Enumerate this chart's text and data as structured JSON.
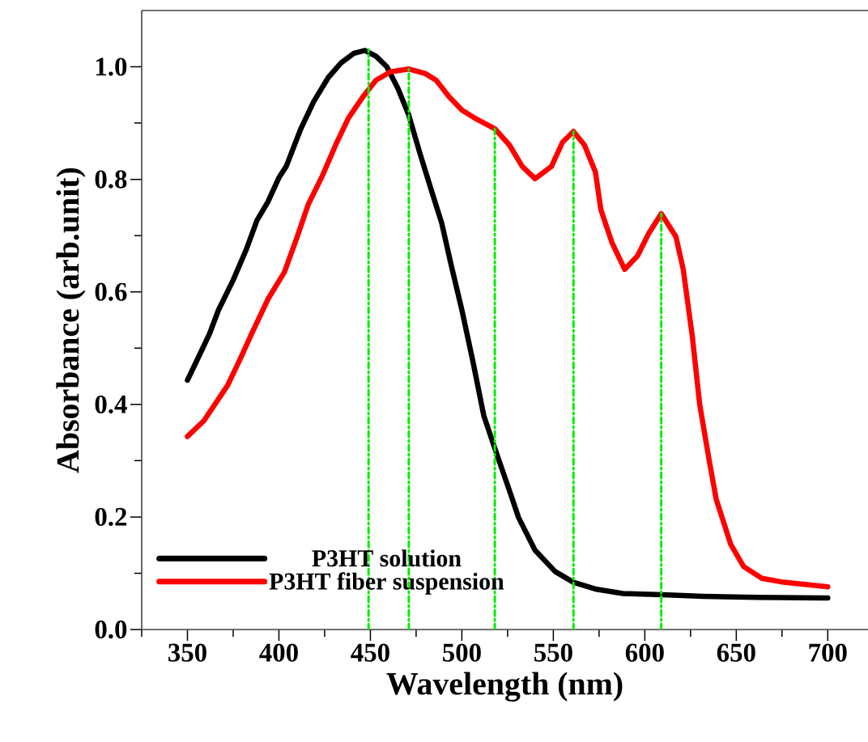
{
  "chart_data": {
    "type": "line",
    "xlabel": "Wavelength (nm)",
    "ylabel": "Absorbance (arb.unit)",
    "xlim": [
      325,
      722
    ],
    "ylim": [
      0,
      1.1
    ],
    "xticks": [
      {
        "value": 325,
        "label": null
      },
      350,
      {
        "value": 375,
        "label": null
      },
      400,
      {
        "value": 425,
        "label": null
      },
      450,
      {
        "value": 475,
        "label": null
      },
      500,
      {
        "value": 525,
        "label": null
      },
      550,
      {
        "value": 575,
        "label": null
      },
      600,
      {
        "value": 625,
        "label": null
      },
      650,
      {
        "value": 675,
        "label": null
      },
      700
    ],
    "yticks": [
      {
        "value": 0,
        "label": "0.0"
      },
      {
        "value": 0.1,
        "label": null
      },
      0.2,
      {
        "value": 0.3,
        "label": null
      },
      0.4,
      {
        "value": 0.5,
        "label": null
      },
      0.6,
      {
        "value": 0.7,
        "label": null
      },
      0.8,
      {
        "value": 0.9,
        "label": null
      },
      {
        "value": 1.0,
        "label": "1.0"
      }
    ],
    "legend": "bottom left",
    "series": [
      {
        "name": "P3HT solution",
        "color": "#000000",
        "x": [
          350,
          355,
          362,
          367,
          375,
          382,
          388,
          394,
          400,
          404,
          412,
          419,
          427,
          434,
          441,
          447,
          453,
          459,
          465,
          471,
          477,
          483,
          489,
          494,
          500,
          506,
          512,
          518,
          526,
          531,
          540,
          551,
          561,
          573,
          588,
          610,
          632,
          661,
          700
        ],
        "values": [
          0.443,
          0.477,
          0.525,
          0.568,
          0.621,
          0.674,
          0.727,
          0.76,
          0.803,
          0.823,
          0.89,
          0.938,
          0.981,
          1.007,
          1.024,
          1.029,
          1.019,
          1.0,
          0.962,
          0.914,
          0.847,
          0.784,
          0.722,
          0.65,
          0.568,
          0.477,
          0.38,
          0.322,
          0.247,
          0.199,
          0.141,
          0.103,
          0.084,
          0.072,
          0.064,
          0.062,
          0.059,
          0.057,
          0.056
        ]
      },
      {
        "name": "P3HT fiber suspension",
        "color": "#ff0000",
        "x": [
          350,
          359,
          366,
          372,
          379,
          385,
          394,
          403,
          410,
          416,
          424,
          431,
          438,
          446,
          453,
          461,
          471,
          480,
          486,
          493,
          500,
          508,
          518,
          526,
          533,
          540,
          549,
          555,
          561,
          567,
          573,
          576,
          582,
          589,
          596,
          602,
          609,
          617,
          621,
          626,
          630,
          635,
          639,
          647,
          654,
          664,
          676,
          700
        ],
        "values": [
          0.343,
          0.371,
          0.405,
          0.434,
          0.482,
          0.525,
          0.587,
          0.635,
          0.698,
          0.755,
          0.808,
          0.861,
          0.909,
          0.947,
          0.976,
          0.991,
          0.996,
          0.988,
          0.976,
          0.947,
          0.923,
          0.907,
          0.89,
          0.861,
          0.823,
          0.801,
          0.823,
          0.866,
          0.885,
          0.861,
          0.813,
          0.746,
          0.688,
          0.64,
          0.664,
          0.703,
          0.739,
          0.698,
          0.64,
          0.52,
          0.4,
          0.304,
          0.232,
          0.151,
          0.112,
          0.091,
          0.084,
          0.076
        ]
      },
      {
        "color": "#00ee00",
        "line_style": "dashed",
        "x": [
          449,
          449
        ],
        "values": [
          0,
          1.031
        ]
      },
      {
        "color": "#00ee00",
        "line_style": "dashed",
        "x": [
          471,
          471
        ],
        "values": [
          0,
          0.996
        ]
      },
      {
        "color": "#00ee00",
        "line_style": "dashed",
        "x": [
          518,
          518
        ],
        "values": [
          0,
          0.89
        ]
      },
      {
        "color": "#00ee00",
        "line_style": "dashed",
        "x": [
          561,
          561
        ],
        "values": [
          0,
          0.885
        ]
      },
      {
        "color": "#00ee00",
        "line_style": "dashed",
        "x": [
          609,
          609
        ],
        "values": [
          0,
          0.739
        ]
      }
    ]
  }
}
